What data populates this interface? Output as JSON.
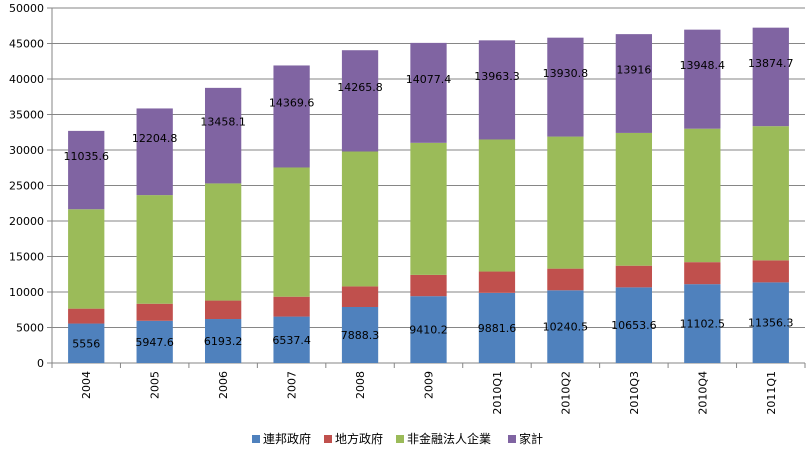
{
  "chart_data": {
    "type": "bar",
    "stacked": true,
    "categories": [
      "2004",
      "2005",
      "2006",
      "2007",
      "2008",
      "2009",
      "2010Q1",
      "2010Q2",
      "2010Q3",
      "2010Q4",
      "2011Q1"
    ],
    "ylim": [
      0,
      50000
    ],
    "yticks": [
      0,
      5000,
      10000,
      15000,
      20000,
      25000,
      30000,
      35000,
      40000,
      45000,
      50000
    ],
    "ytick_labels": [
      "0",
      "5000",
      "10000",
      "15000",
      "20000",
      "25000",
      "30000",
      "35000",
      "40000",
      "45000",
      "50000"
    ],
    "grid": true,
    "legend_position": "bottom",
    "series": [
      {
        "name": "連邦政府",
        "color": "#4F81BD",
        "values": [
          5556,
          5947.6,
          6193.2,
          6537.4,
          7888.3,
          9410.2,
          9881.6,
          10240.5,
          10653.6,
          11102.5,
          11356.3
        ],
        "labels": [
          "5556",
          "5947.6",
          "6193.2",
          "6537.4",
          "7888.3",
          "9410.2",
          "9881.6",
          "10240.5",
          "10653.6",
          "11102.5",
          "11356.3"
        ]
      },
      {
        "name": "地方政府",
        "color": "#C0504D",
        "values": [
          2100,
          2400,
          2600,
          2800,
          2900,
          3000,
          3000,
          3050,
          3050,
          3100,
          3100
        ],
        "labels": []
      },
      {
        "name": "非金融法人企業",
        "color": "#9BBB59",
        "values": [
          14000,
          15300,
          16500,
          18200,
          19000,
          18600,
          18600,
          18600,
          18700,
          18800,
          18900
        ],
        "labels": []
      },
      {
        "name": "家計",
        "color": "#8064A2",
        "values": [
          11035.6,
          12204.8,
          13458.1,
          14369.6,
          14265.8,
          14077.4,
          13963.3,
          13930.8,
          13916,
          13948.4,
          13874.7
        ],
        "labels": [
          "11035.6",
          "12204.8",
          "13458.1",
          "14369.6",
          "14265.8",
          "14077.4",
          "13963.3",
          "13930.8",
          "13916",
          "13948.4",
          "13874.7"
        ]
      }
    ]
  }
}
